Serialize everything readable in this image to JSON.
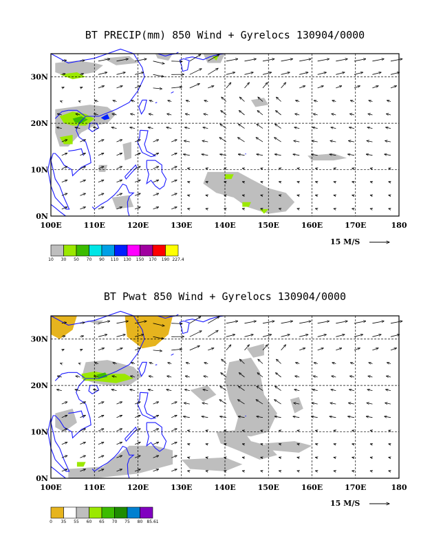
{
  "chart_data": [
    {
      "type": "map",
      "title": "BT PRECIP(mm) 850 Wind + Gyrelocs 130904/0000",
      "x_ticks": [
        "100E",
        "110E",
        "120E",
        "130E",
        "140E",
        "150E",
        "160E",
        "170E",
        "180"
      ],
      "y_ticks": [
        "0N",
        "10N",
        "20N",
        "30N"
      ],
      "xlim": [
        100,
        180
      ],
      "ylim": [
        0,
        35
      ],
      "grid": true,
      "reference_vector": "15 M/S",
      "colorbar": {
        "labels": [
          "10",
          "30",
          "50",
          "70",
          "90",
          "110",
          "130",
          "150",
          "170",
          "190",
          "227.4"
        ],
        "colors": [
          "#bebebe",
          "#9be800",
          "#3cbc00",
          "#00e6e6",
          "#00a0e6",
          "#0020ff",
          "#ff00ff",
          "#a000a0",
          "#ff0000",
          "#ffff00"
        ]
      }
    },
    {
      "type": "map",
      "title": "BT Pwat 850 Wind + Gyrelocs 130904/0000",
      "x_ticks": [
        "100E",
        "110E",
        "120E",
        "130E",
        "140E",
        "150E",
        "160E",
        "170E",
        "180"
      ],
      "y_ticks": [
        "0N",
        "10N",
        "20N",
        "30N"
      ],
      "xlim": [
        100,
        180
      ],
      "ylim": [
        0,
        35
      ],
      "grid": true,
      "reference_vector": "15 M/S",
      "colorbar": {
        "labels": [
          "0",
          "35",
          "55",
          "60",
          "65",
          "70",
          "75",
          "80",
          "85.61"
        ],
        "colors": [
          "#e6b41e",
          "#ffffff",
          "#bebebe",
          "#9be800",
          "#3cbc00",
          "#1e8c00",
          "#0080d0",
          "#8000c0"
        ]
      }
    }
  ]
}
